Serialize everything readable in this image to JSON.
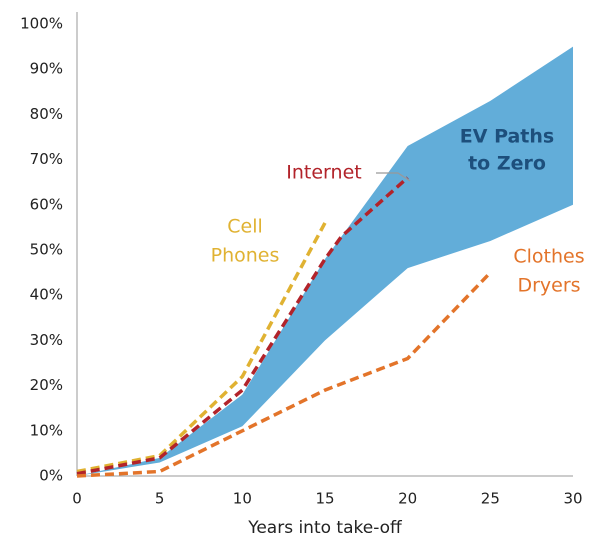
{
  "chart_data": {
    "type": "line",
    "x_label": "Years into take-off",
    "xlim": [
      0,
      30
    ],
    "xticks": [
      0,
      5,
      10,
      15,
      20,
      25,
      30
    ],
    "ylim": [
      0,
      100
    ],
    "yticks": [
      {
        "value": 0,
        "label": "0%"
      },
      {
        "value": 10,
        "label": "10%"
      },
      {
        "value": 20,
        "label": "20%"
      },
      {
        "value": 30,
        "label": "30%"
      },
      {
        "value": 40,
        "label": "40%"
      },
      {
        "value": 50,
        "label": "50%"
      },
      {
        "value": 60,
        "label": "60%"
      },
      {
        "value": 70,
        "label": "70%"
      },
      {
        "value": 80,
        "label": "80%"
      },
      {
        "value": 90,
        "label": "90%"
      },
      {
        "value": 100,
        "label": "100%"
      }
    ],
    "grid": false,
    "area": {
      "label": [
        "EV Paths",
        "to Zero"
      ],
      "color": "#62add9",
      "label_color": "#1d4f7c",
      "x": [
        0,
        5,
        10,
        15,
        20,
        25,
        30
      ],
      "upper": [
        0,
        4,
        18,
        48,
        73,
        83,
        95
      ],
      "lower": [
        0,
        3,
        11,
        30,
        46,
        52,
        60
      ]
    },
    "series": [
      {
        "label": [
          "Cell",
          "Phones"
        ],
        "color": "#e0b232",
        "x": [
          0,
          5,
          10,
          15
        ],
        "values": [
          1,
          4.5,
          22,
          56
        ]
      },
      {
        "label": [
          "Internet"
        ],
        "color": "#b2232a",
        "x": [
          0,
          5,
          10,
          15,
          16,
          20
        ],
        "values": [
          0.5,
          4,
          19,
          48,
          53,
          66
        ]
      },
      {
        "label": [
          "Clothes",
          "Dryers"
        ],
        "color": "#e3742a",
        "x": [
          0,
          5,
          10,
          15,
          20,
          25
        ],
        "values": [
          0,
          1,
          10,
          19,
          26,
          45
        ]
      }
    ]
  }
}
